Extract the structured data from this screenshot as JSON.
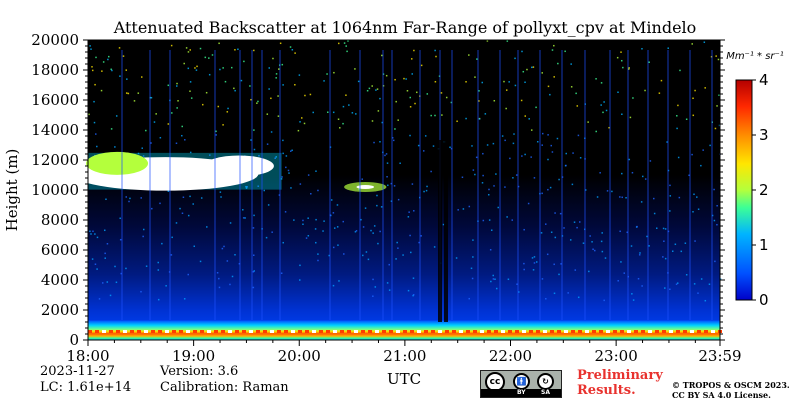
{
  "chart_data": {
    "type": "heatmap",
    "title": "Attenuated Backscatter at 1064nm Far-Range of pollyxt_cpv at Mindelo",
    "ylabel": "Height (m)",
    "xlabel": "UTC",
    "x_ticks": [
      "18:00",
      "19:00",
      "20:00",
      "21:00",
      "22:00",
      "23:00",
      "23:59"
    ],
    "x_range": [
      "18:00",
      "23:59"
    ],
    "y_ticks": [
      0,
      2000,
      4000,
      6000,
      8000,
      10000,
      12000,
      14000,
      16000,
      18000,
      20000
    ],
    "y_range": [
      0,
      20000
    ],
    "colorbar": {
      "unit": "Mm⁻¹ * sr⁻¹",
      "ticks": [
        0,
        1,
        2,
        3,
        4
      ],
      "range": [
        0,
        4
      ],
      "colormap": "jet"
    },
    "features": [
      {
        "name": "boundary layer",
        "start": "18:00",
        "end": "23:59",
        "height_range": [
          0,
          1300
        ],
        "value_range": [
          1.0,
          4.0
        ]
      },
      {
        "name": "cirrus cloud",
        "start": "18:00",
        "end": "19:50",
        "height_range": [
          9500,
          13000
        ],
        "value_range": [
          2.0,
          4.0
        ]
      },
      {
        "name": "thin cloud",
        "start": "20:30",
        "end": "20:45",
        "height_range": [
          10000,
          10400
        ],
        "value_range": [
          1.0,
          2.0
        ]
      }
    ],
    "grid": false
  },
  "info": {
    "date": "2023-11-27",
    "version": "Version: 3.6",
    "lc": "LC: 1.61e+14",
    "calibration": "Calibration: Raman"
  },
  "license": {
    "badge_left": "BY",
    "badge_right": "SA",
    "preliminary_line1": "Preliminary",
    "preliminary_line2": "Results.",
    "copyright_line1": "© TROPOS & OSCM 2023.",
    "copyright_line2": "CC BY SA 4.0 License."
  },
  "colors": {
    "preliminary": "#e8322e",
    "background": "#000000"
  }
}
